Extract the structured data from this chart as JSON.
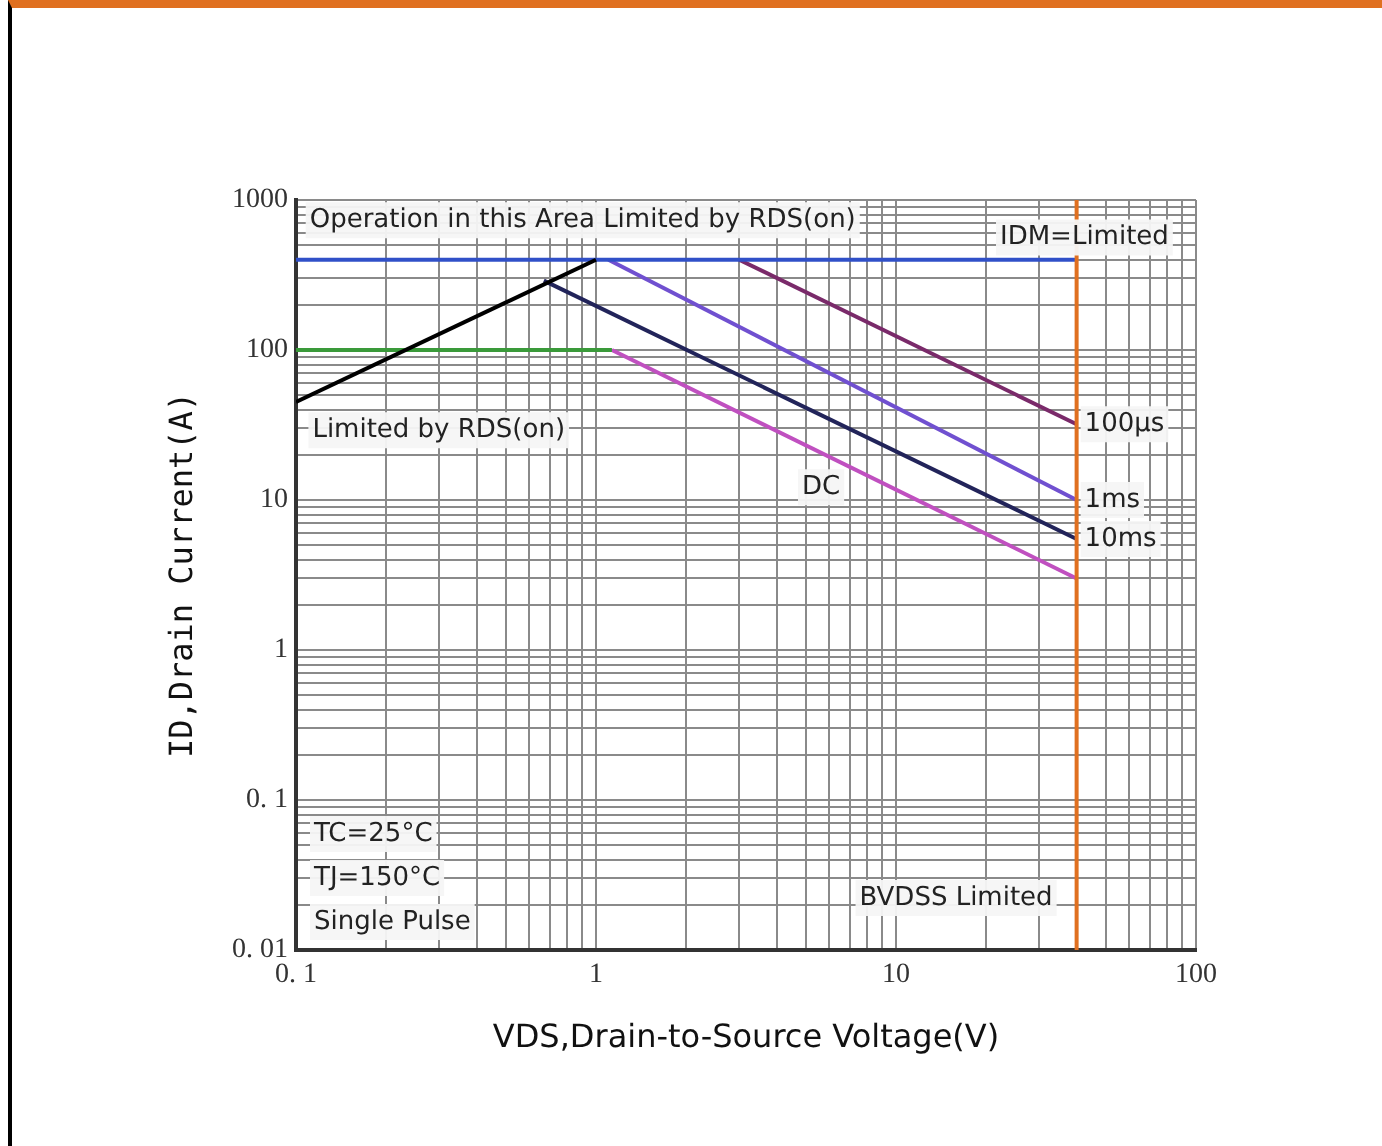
{
  "chart_data": {
    "type": "line",
    "log": "xy",
    "xlabel": "VDS,Drain-to-Source Voltage(V)",
    "ylabel": "ID,Drain Current(A)",
    "xlim": [
      0.1,
      100
    ],
    "ylim": [
      0.01,
      1000
    ],
    "xticks": [
      {
        "value": 0.1,
        "label": "0. 1"
      },
      {
        "value": 0.2,
        "label": null
      },
      {
        "value": 0.3,
        "label": null
      },
      {
        "value": 0.4,
        "label": null
      },
      {
        "value": 0.5,
        "label": null
      },
      {
        "value": 0.6,
        "label": null
      },
      {
        "value": 0.7,
        "label": null
      },
      {
        "value": 0.8,
        "label": null
      },
      {
        "value": 0.9,
        "label": null
      },
      1,
      {
        "value": 2,
        "label": null
      },
      {
        "value": 3,
        "label": null
      },
      {
        "value": 4,
        "label": null
      },
      {
        "value": 5,
        "label": null
      },
      {
        "value": 6,
        "label": null
      },
      {
        "value": 7,
        "label": null
      },
      {
        "value": 8,
        "label": null
      },
      {
        "value": 9,
        "label": null
      },
      10,
      {
        "value": 20,
        "label": null
      },
      {
        "value": 30,
        "label": null
      },
      {
        "value": 40,
        "label": null
      },
      {
        "value": 50,
        "label": null
      },
      {
        "value": 60,
        "label": null
      },
      {
        "value": 70,
        "label": null
      },
      {
        "value": 80,
        "label": null
      },
      {
        "value": 90,
        "label": null
      },
      100
    ],
    "yticks": [
      {
        "value": 0.01,
        "label": "0. 01"
      },
      {
        "value": 0.02,
        "label": null
      },
      {
        "value": 0.03,
        "label": null
      },
      {
        "value": 0.04,
        "label": null
      },
      {
        "value": 0.05,
        "label": null
      },
      {
        "value": 0.06,
        "label": null
      },
      {
        "value": 0.07,
        "label": null
      },
      {
        "value": 0.08,
        "label": null
      },
      {
        "value": 0.09,
        "label": null
      },
      {
        "value": 0.1,
        "label": "0. 1"
      },
      {
        "value": 0.2,
        "label": null
      },
      {
        "value": 0.3,
        "label": null
      },
      {
        "value": 0.4,
        "label": null
      },
      {
        "value": 0.5,
        "label": null
      },
      {
        "value": 0.6,
        "label": null
      },
      {
        "value": 0.7,
        "label": null
      },
      {
        "value": 0.8,
        "label": null
      },
      {
        "value": 0.9,
        "label": null
      },
      1,
      {
        "value": 2,
        "label": null
      },
      {
        "value": 3,
        "label": null
      },
      {
        "value": 4,
        "label": null
      },
      {
        "value": 5,
        "label": null
      },
      {
        "value": 6,
        "label": null
      },
      {
        "value": 7,
        "label": null
      },
      {
        "value": 8,
        "label": null
      },
      {
        "value": 9,
        "label": null
      },
      10,
      {
        "value": 20,
        "label": null
      },
      {
        "value": 30,
        "label": null
      },
      {
        "value": 40,
        "label": null
      },
      {
        "value": 50,
        "label": null
      },
      {
        "value": 60,
        "label": null
      },
      {
        "value": 70,
        "label": null
      },
      {
        "value": 80,
        "label": null
      },
      {
        "value": 90,
        "label": null
      },
      100,
      {
        "value": 200,
        "label": null
      },
      {
        "value": 300,
        "label": null
      },
      {
        "value": 400,
        "label": null
      },
      {
        "value": 500,
        "label": null
      },
      {
        "value": 600,
        "label": null
      },
      {
        "value": 700,
        "label": null
      },
      {
        "value": 800,
        "label": null
      },
      {
        "value": 900,
        "label": null
      },
      1000
    ],
    "grid": true,
    "legend": false,
    "marker": "none",
    "line_style": "solid",
    "series": [
      {
        "color": "#000000",
        "x": [
          0.1,
          1
        ],
        "values": [
          45,
          400
        ]
      },
      {
        "color": "#3a9a3a",
        "x": [
          0.1,
          1.13
        ],
        "values": [
          100,
          100
        ]
      },
      {
        "color": "#3050c8",
        "x": [
          0.1,
          40
        ],
        "values": [
          400,
          400
        ]
      },
      {
        "name": "100µs",
        "color": "#7a2a6a",
        "x": [
          3,
          40
        ],
        "values": [
          400,
          32
        ]
      },
      {
        "name": "1ms",
        "color": "#7050d0",
        "x": [
          1.1,
          40
        ],
        "values": [
          400,
          10
        ]
      },
      {
        "name": "10ms",
        "color": "#22245a",
        "x": [
          0.67,
          40
        ],
        "values": [
          290,
          5.5
        ]
      },
      {
        "color": "#c050c0",
        "x": [
          1.13,
          40
        ],
        "values": [
          100,
          3
        ]
      }
    ],
    "ref_lines": [
      {
        "axis": "x",
        "value": 40,
        "label": "BVDSS Limited",
        "color": "#e07020"
      }
    ],
    "annotations": [
      "Operation in this Area Limited by RDS(on)",
      "IDM=Limited",
      "Limited by RDS(on)",
      "DC",
      "TC=25°C",
      "TJ=150°C",
      "Single Pulse"
    ]
  }
}
